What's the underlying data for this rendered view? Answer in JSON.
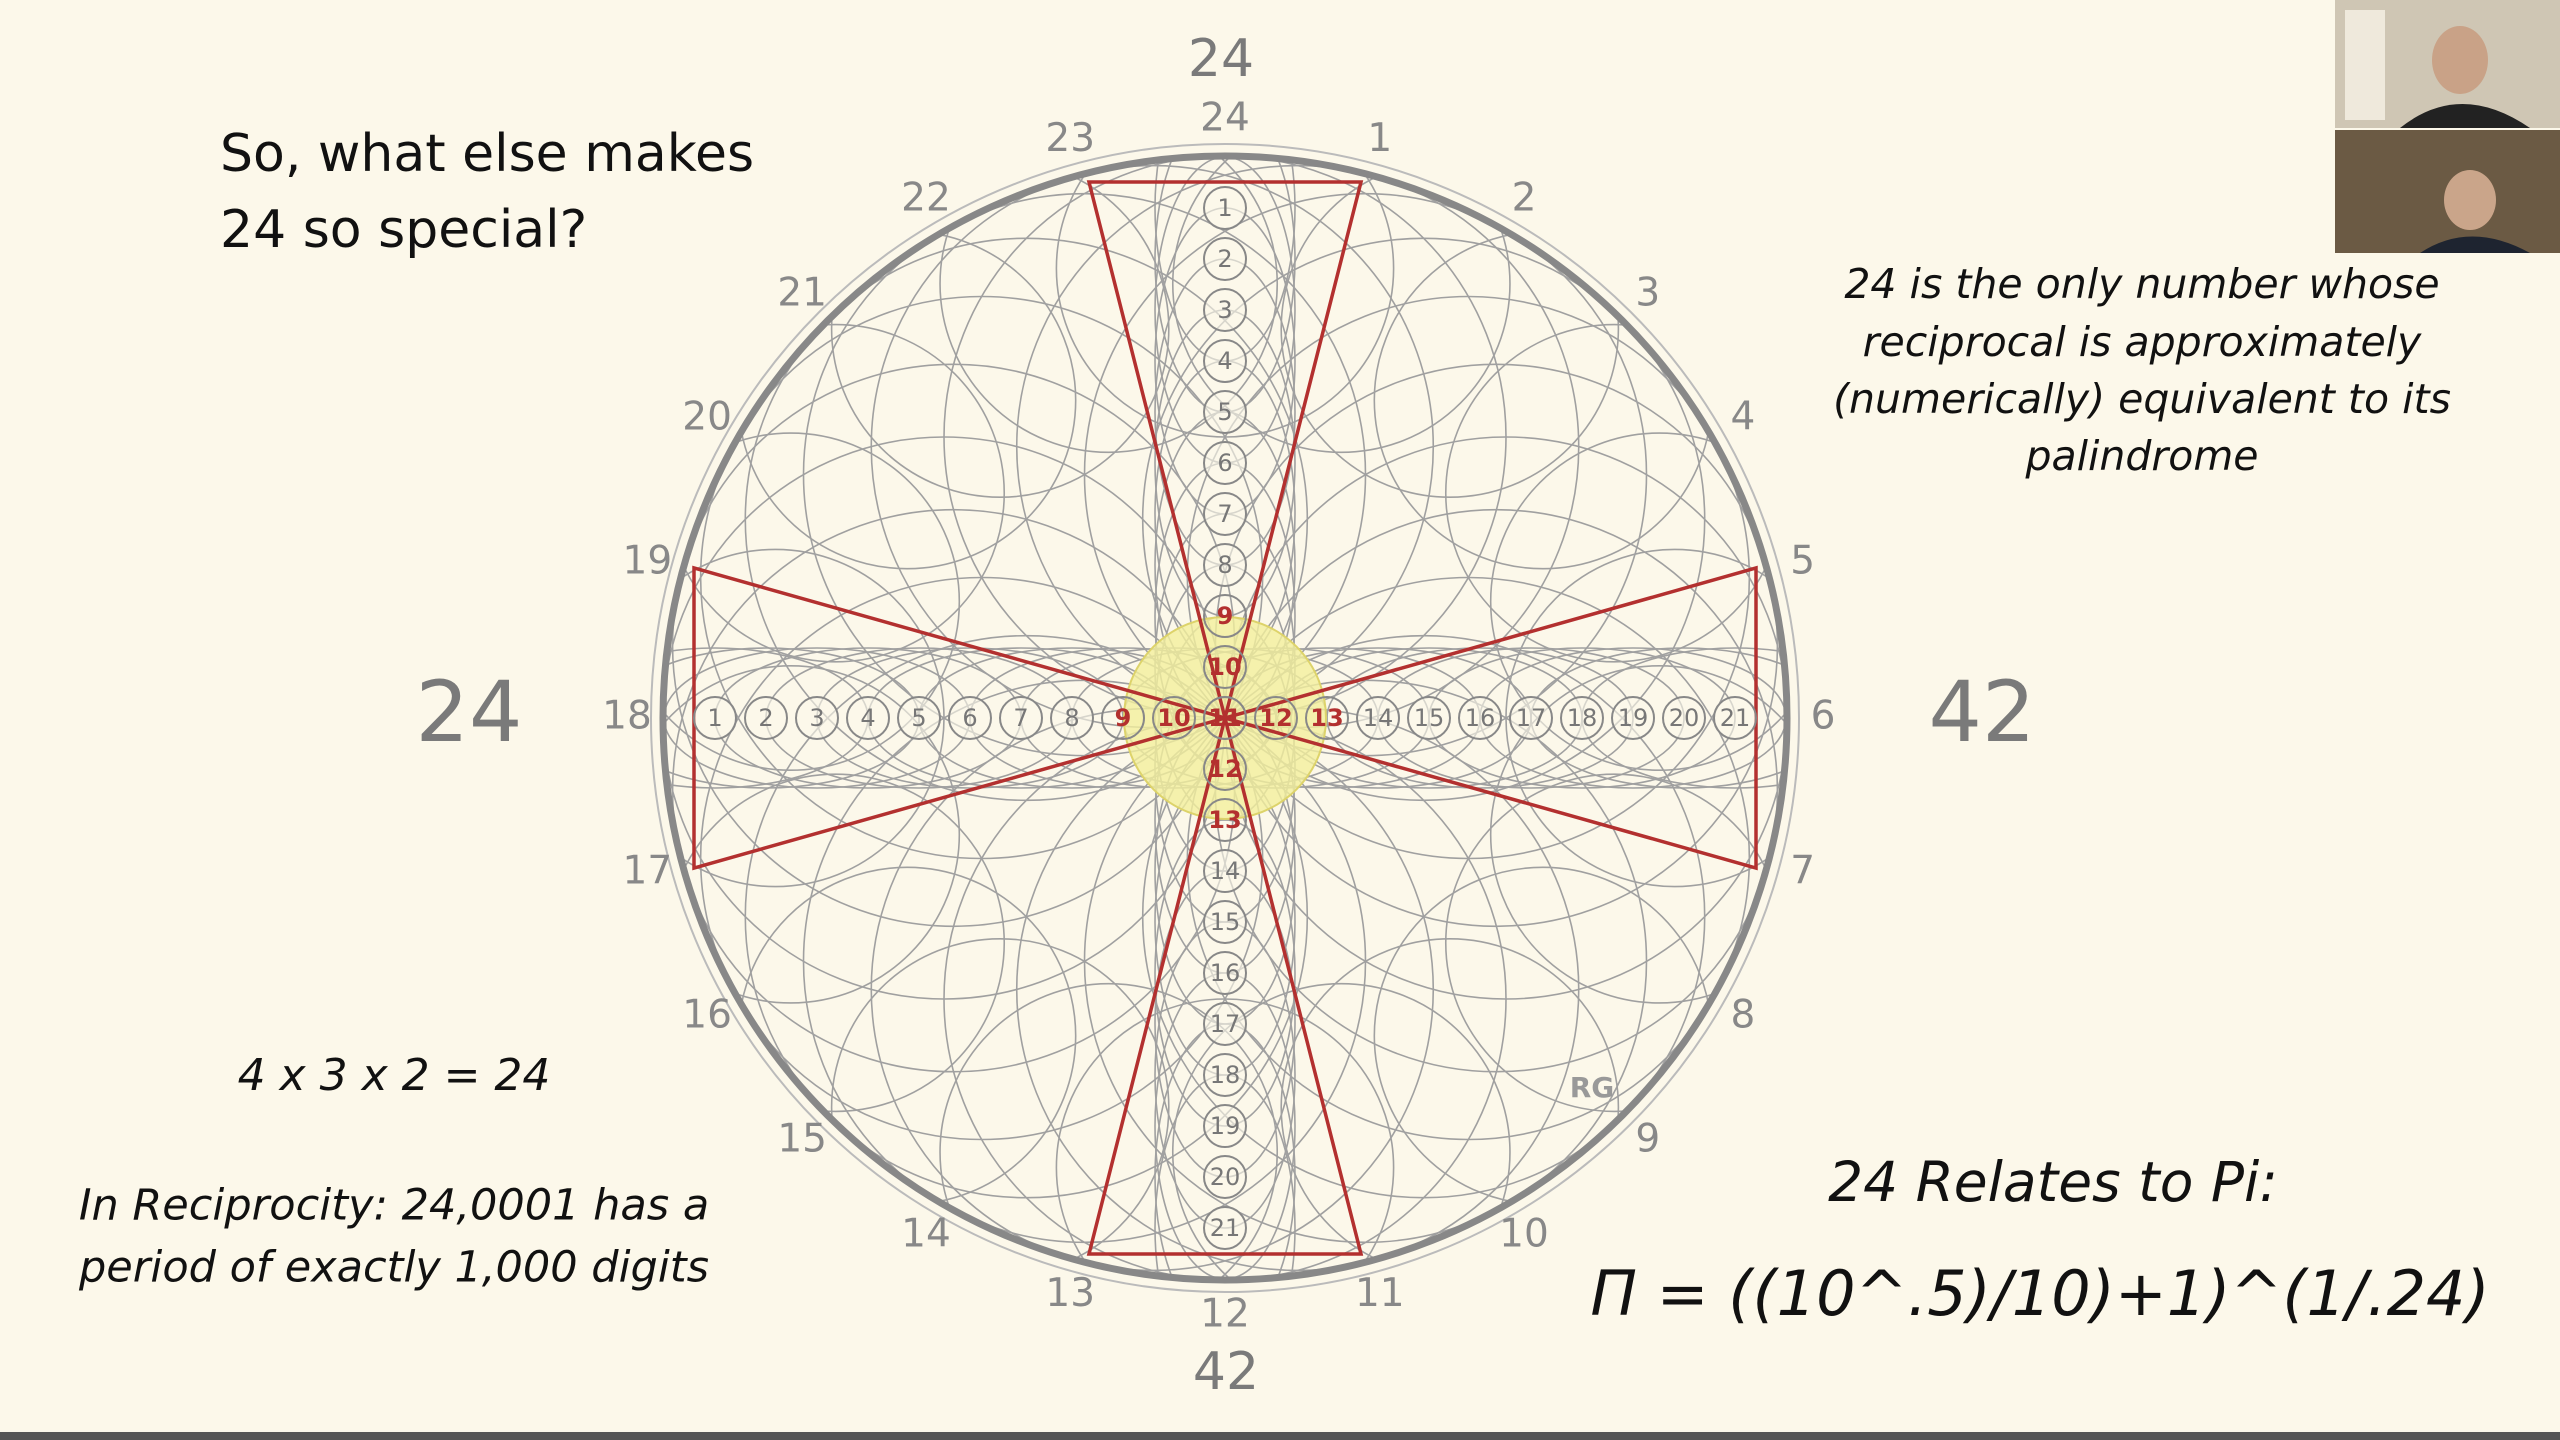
{
  "heading": {
    "lines": [
      "So, what else makes",
      "24 so special?"
    ]
  },
  "side_labels": {
    "left": "24",
    "right": "42",
    "top": "24",
    "bottom": "42"
  },
  "dial": {
    "labels": [
      "24",
      "1",
      "2",
      "3",
      "4",
      "5",
      "6",
      "7",
      "8",
      "9",
      "10",
      "11",
      "12",
      "13",
      "14",
      "15",
      "16",
      "17",
      "18",
      "19",
      "20",
      "21",
      "22",
      "23"
    ],
    "vertical_circles": [
      "1",
      "2",
      "3",
      "4",
      "5",
      "6",
      "7",
      "8",
      "9",
      "10",
      "11",
      "12",
      "13",
      "14",
      "15",
      "16",
      "17",
      "18",
      "19",
      "20",
      "21"
    ],
    "horizontal_circles": [
      "1",
      "2",
      "3",
      "4",
      "5",
      "6",
      "7",
      "8",
      "9",
      "10",
      "11",
      "12",
      "13",
      "14",
      "15",
      "16",
      "17",
      "18",
      "19",
      "20",
      "21"
    ],
    "signature": "RG"
  },
  "note": {
    "lines": [
      "24 is the only number whose",
      "reciprocal is approximately",
      "(numerically) equivalent to its",
      "palindrome"
    ]
  },
  "equation": "4 x 3 x 2 = 24",
  "reciprocity": {
    "lines": [
      "In Reciprocity:  24,0001 has a",
      "period of exactly 1,000 digits"
    ]
  },
  "pi": {
    "title": "24 Relates to Pi:",
    "formula": "Π = ((10^.5)/10)+1)^(1/.24)"
  }
}
